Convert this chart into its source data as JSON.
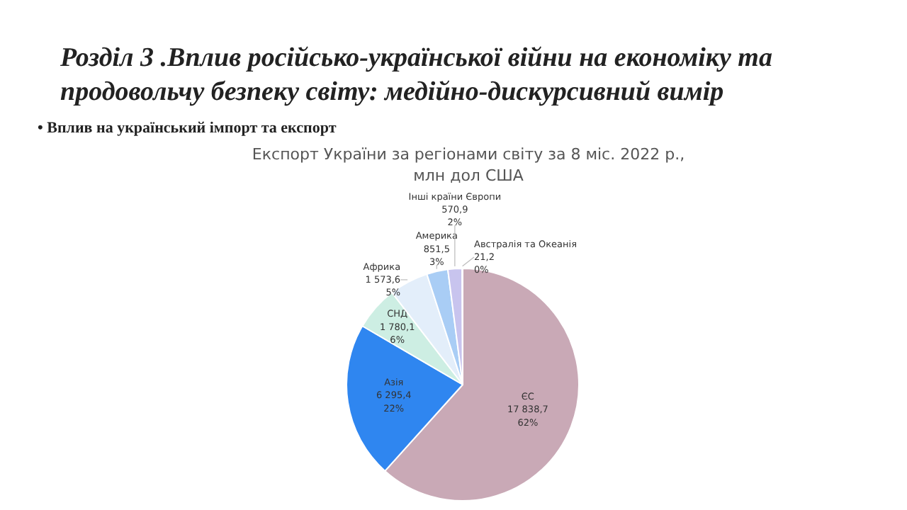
{
  "chart_data": {
    "type": "pie",
    "title": "Експорт України за регіонами світу за 8 міс. 2022 р.,\nмлн дол США",
    "annotations": [
      "Розділ 3 .Вплив російсько-української війни на економіку та\nпродовольчу безпеку світу: медійно-дискурсивний вимір",
      "• Вплив на український імпорт та експорт"
    ],
    "categories": [
      "ЄС",
      "Азія",
      "СНД",
      "Африка",
      "Америка",
      "Інші країни Європи",
      "Австралія та Океанія"
    ],
    "values": [
      17838.7,
      6295.4,
      1780.1,
      1573.6,
      851.5,
      570.9,
      21.2
    ],
    "value_labels": [
      "17 838,7\n62%",
      "6 295,4\n22%",
      "1 780,1\n6%",
      "1 573,6\n5%",
      "851,5\n3%",
      "570,9\n2%",
      "21,2\n0%"
    ],
    "colors": [
      "#c9a9b6",
      "#2f86f0",
      "#cdeee3",
      "#e3eefa",
      "#a9cdf5",
      "#c8c4ee",
      "#d9d9d9"
    ]
  }
}
